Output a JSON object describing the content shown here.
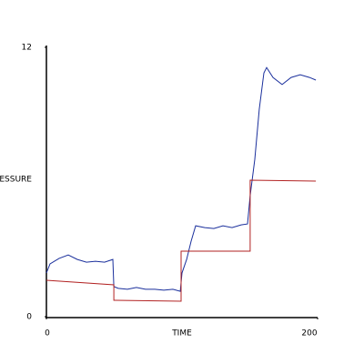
{
  "chart_data": {
    "type": "line",
    "xlabel": "TIME",
    "ylabel": "PRESSURE",
    "xlim": [
      0,
      200
    ],
    "xticks": [
      0,
      200
    ],
    "ylim": [
      0,
      12
    ],
    "yticks": [
      0,
      12
    ],
    "grid": false,
    "series": [
      {
        "color": "#1a2f9c",
        "x": [
          0,
          2.7,
          9.4,
          16.1,
          22.8,
          29.5,
          36.2,
          42.9,
          49,
          49.7,
          53,
          59.7,
          66.4,
          73.1,
          79.9,
          86.6,
          93.3,
          98.7,
          100,
          103.4,
          106.7,
          110.1,
          116.8,
          123.5,
          130.2,
          136.9,
          143.6,
          148.3,
          150.3,
          153.7,
          157,
          160.4,
          162.4,
          167.1,
          173.8,
          180.5,
          187.2,
          194,
          198.7
        ],
        "values": [
          1.95,
          2.35,
          2.6,
          2.75,
          2.55,
          2.43,
          2.47,
          2.43,
          2.55,
          1.34,
          1.26,
          1.22,
          1.3,
          1.22,
          1.22,
          1.18,
          1.22,
          1.13,
          1.95,
          2.55,
          3.36,
          4.05,
          3.97,
          3.93,
          4.05,
          3.97,
          4.09,
          4.13,
          5.39,
          7.01,
          9.24,
          10.86,
          11.1,
          10.66,
          10.34,
          10.66,
          10.78,
          10.66,
          10.54
        ]
      },
      {
        "color": "#b22222",
        "x": [
          0,
          49.7,
          49.7,
          99.3,
          99.3,
          150.3,
          150.3,
          198.7
        ],
        "values": [
          1.62,
          1.42,
          0.73,
          0.69,
          2.92,
          2.92,
          6.08,
          6.04
        ]
      }
    ]
  }
}
